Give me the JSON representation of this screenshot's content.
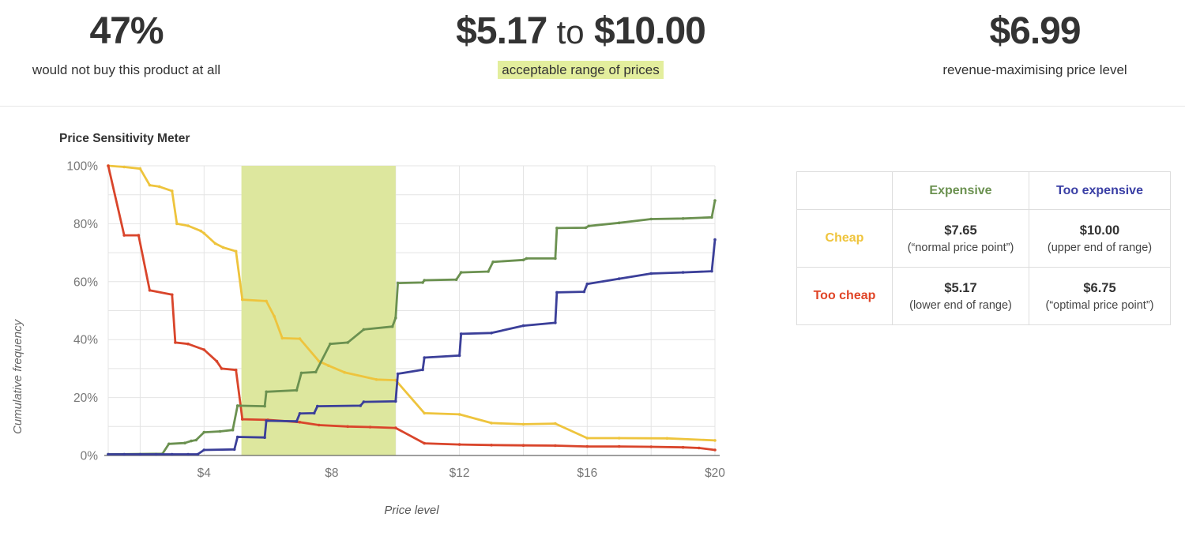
{
  "stats": {
    "left": {
      "value": "47%",
      "label": "would not buy this product at all"
    },
    "middle": {
      "value_from": "$5.17",
      "connector": "to",
      "value_to": "$10.00",
      "label": "acceptable range of prices",
      "label_highlight_color": "#e3ee9d"
    },
    "right": {
      "value": "$6.99",
      "label": "revenue-maximising price level"
    }
  },
  "chart_data": {
    "type": "line",
    "title": "Price Sensitivity Meter",
    "xlabel": "Price level",
    "ylabel": "Cumulative frequency",
    "xlim": [
      1,
      20
    ],
    "ylim": [
      0,
      100
    ],
    "grid": true,
    "legend": "none",
    "xticks": [
      {
        "value": 4,
        "label": "$4"
      },
      {
        "value": 8,
        "label": "$8"
      },
      {
        "value": 12,
        "label": "$12"
      },
      {
        "value": 16,
        "label": "$16"
      },
      {
        "value": 20,
        "label": "$20"
      }
    ],
    "yticks": [
      {
        "value": 0,
        "label": "0%"
      },
      {
        "value": 20,
        "label": "20%"
      },
      {
        "value": 40,
        "label": "40%"
      },
      {
        "value": 60,
        "label": "60%"
      },
      {
        "value": 80,
        "label": "80%"
      },
      {
        "value": 100,
        "label": "100%"
      }
    ],
    "ygrid_step": 10,
    "xgrid_values": [
      1,
      2,
      4,
      6,
      8,
      10,
      12,
      14,
      16,
      18,
      20
    ],
    "acceptable_range": {
      "from": 5.17,
      "to": 10.0,
      "color": "#dde79e"
    },
    "tick_color": "#777777",
    "series": [
      {
        "name": "Cheap",
        "color": "#eec43d",
        "points": [
          [
            1,
            100
          ],
          [
            1.5,
            99.6
          ],
          [
            2,
            99
          ],
          [
            2.3,
            93.3
          ],
          [
            2.6,
            92.8
          ],
          [
            3,
            91.3
          ],
          [
            3.15,
            80
          ],
          [
            3.5,
            79.3
          ],
          [
            3.9,
            77.5
          ],
          [
            4,
            76.7
          ],
          [
            4.35,
            73.2
          ],
          [
            4.6,
            71.8
          ],
          [
            5,
            70.5
          ],
          [
            5.2,
            53.8
          ],
          [
            5.95,
            53.3
          ],
          [
            6.2,
            48
          ],
          [
            6.45,
            40.5
          ],
          [
            7,
            40.3
          ],
          [
            7.6,
            32.5
          ],
          [
            7.9,
            31
          ],
          [
            8.4,
            28.7
          ],
          [
            9.4,
            26.2
          ],
          [
            10,
            26
          ],
          [
            10.9,
            14.6
          ],
          [
            12,
            14.2
          ],
          [
            13,
            11.2
          ],
          [
            14,
            10.8
          ],
          [
            15,
            11
          ],
          [
            16,
            6
          ],
          [
            17,
            6
          ],
          [
            18.5,
            5.9
          ],
          [
            20,
            5.2
          ]
        ]
      },
      {
        "name": "Too cheap",
        "color": "#d9452b",
        "points": [
          [
            1,
            100
          ],
          [
            1.5,
            76
          ],
          [
            1.95,
            76
          ],
          [
            2.3,
            57
          ],
          [
            3,
            55.5
          ],
          [
            3.1,
            39
          ],
          [
            3.5,
            38.5
          ],
          [
            4,
            36.5
          ],
          [
            4.4,
            32.5
          ],
          [
            4.55,
            30
          ],
          [
            5,
            29.5
          ],
          [
            5.2,
            12.5
          ],
          [
            6,
            12.3
          ],
          [
            7,
            11.5
          ],
          [
            7.6,
            10.5
          ],
          [
            8.5,
            10
          ],
          [
            9.2,
            9.8
          ],
          [
            10,
            9.5
          ],
          [
            10.9,
            4.2
          ],
          [
            12,
            3.8
          ],
          [
            13,
            3.6
          ],
          [
            14,
            3.5
          ],
          [
            15,
            3.4
          ],
          [
            16,
            3.1
          ],
          [
            17,
            3.1
          ],
          [
            18,
            3
          ],
          [
            19,
            2.8
          ],
          [
            19.5,
            2.6
          ],
          [
            20,
            1.9
          ]
        ]
      },
      {
        "name": "Expensive",
        "color": "#6b9150",
        "points": [
          [
            1,
            0.4
          ],
          [
            2.7,
            0.6
          ],
          [
            2.9,
            4
          ],
          [
            3.4,
            4.3
          ],
          [
            3.6,
            5
          ],
          [
            3.75,
            5.3
          ],
          [
            4,
            8
          ],
          [
            4.5,
            8.3
          ],
          [
            4.9,
            8.8
          ],
          [
            5.05,
            17.2
          ],
          [
            5.9,
            17
          ],
          [
            5.95,
            22
          ],
          [
            6.9,
            22.5
          ],
          [
            7.05,
            28.5
          ],
          [
            7.5,
            28.8
          ],
          [
            7.95,
            38.5
          ],
          [
            8.5,
            39
          ],
          [
            9,
            43.5
          ],
          [
            9.9,
            44.5
          ],
          [
            10,
            47.5
          ],
          [
            10.07,
            59.5
          ],
          [
            10.85,
            59.7
          ],
          [
            10.9,
            60.5
          ],
          [
            11.9,
            60.7
          ],
          [
            12.05,
            63.2
          ],
          [
            12.9,
            63.5
          ],
          [
            13.05,
            66.8
          ],
          [
            14,
            67.5
          ],
          [
            14.1,
            68
          ],
          [
            15,
            68
          ],
          [
            15.05,
            78.5
          ],
          [
            15.95,
            78.6
          ],
          [
            16.05,
            79.2
          ],
          [
            17,
            80.3
          ],
          [
            18,
            81.6
          ],
          [
            19,
            81.8
          ],
          [
            19.9,
            82.2
          ],
          [
            20,
            88
          ]
        ]
      },
      {
        "name": "Too expensive",
        "color": "#3b3f99",
        "points": [
          [
            1,
            0.4
          ],
          [
            1.5,
            0.4
          ],
          [
            2,
            0.4
          ],
          [
            2.5,
            0.4
          ],
          [
            3,
            0.4
          ],
          [
            3.5,
            0.4
          ],
          [
            3.8,
            0.4
          ],
          [
            4,
            1.9
          ],
          [
            4.95,
            2.1
          ],
          [
            5.05,
            6.4
          ],
          [
            5.9,
            6.2
          ],
          [
            5.95,
            12
          ],
          [
            6.9,
            11.8
          ],
          [
            7,
            14.5
          ],
          [
            7.45,
            14.6
          ],
          [
            7.55,
            17
          ],
          [
            8.9,
            17.2
          ],
          [
            9,
            18.5
          ],
          [
            10,
            18.7
          ],
          [
            10.07,
            28.2
          ],
          [
            10.85,
            29.6
          ],
          [
            10.9,
            33.8
          ],
          [
            12,
            34.5
          ],
          [
            12.05,
            42
          ],
          [
            13,
            42.3
          ],
          [
            14,
            44.8
          ],
          [
            15,
            45.8
          ],
          [
            15.05,
            56.3
          ],
          [
            15.9,
            56.5
          ],
          [
            16,
            59.2
          ],
          [
            17,
            61
          ],
          [
            18,
            62.8
          ],
          [
            19,
            63.2
          ],
          [
            19.9,
            63.6
          ],
          [
            20,
            74.5
          ]
        ]
      }
    ]
  },
  "table": {
    "col_headers": [
      {
        "label": "Expensive",
        "color": "#6b9150"
      },
      {
        "label": "Too expensive",
        "color": "#3a3fa5"
      }
    ],
    "rows": [
      {
        "label": "Cheap",
        "color": "#efc43c",
        "cells": [
          {
            "value": "$7.65",
            "note": "(“normal price point”)"
          },
          {
            "value": "$10.00",
            "note": "(upper end of range)"
          }
        ]
      },
      {
        "label": "Too cheap",
        "color": "#e04426",
        "cells": [
          {
            "value": "$5.17",
            "note": "(lower end of range)"
          },
          {
            "value": "$6.75",
            "note": "(“optimal price point”)"
          }
        ]
      }
    ]
  }
}
